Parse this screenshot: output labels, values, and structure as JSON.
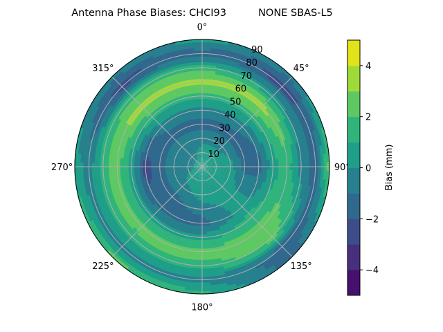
{
  "chart_data": {
    "type": "heatmap",
    "subtype": "polar-contour",
    "title": "Antenna Phase Biases: CHCI93          NONE SBAS-L5",
    "angular_tick_labels": [
      "0°",
      "45°",
      "90°",
      "135°",
      "180°",
      "225°",
      "270°",
      "315°"
    ],
    "radial_tick_labels": [
      "10",
      "20",
      "30",
      "40",
      "50",
      "60",
      "70",
      "80",
      "90"
    ],
    "radial_range": [
      0,
      90
    ],
    "angular_direction": "clockwise",
    "angular_zero": "top",
    "grid": true,
    "colorbar": {
      "label": "Bias (mm)",
      "levels": [
        -5,
        -4,
        -3,
        -2,
        -1,
        0,
        1,
        2,
        3,
        4,
        5
      ],
      "tick_values": [
        4,
        2,
        0,
        -2,
        -4
      ],
      "tick_labels": [
        "4",
        "2",
        "0",
        "−2",
        "−4"
      ],
      "colors": [
        "#45106e",
        "#472f7d",
        "#3e4c8a",
        "#31688e",
        "#27808e",
        "#1f9e89",
        "#30b47c",
        "#5ec962",
        "#a0da39",
        "#e2e21b"
      ],
      "colormap": "viridis",
      "placement": "right"
    },
    "field": {
      "azimuths": [
        0,
        45,
        90,
        135,
        180,
        225,
        270,
        315
      ],
      "radii": [
        0,
        10,
        20,
        30,
        40,
        50,
        60,
        70,
        80,
        90
      ],
      "values": [
        [
          0.5,
          0.5,
          0.5,
          0.5,
          0.5,
          0.5,
          0.5,
          0.5
        ],
        [
          0.5,
          0.5,
          0.5,
          0.5,
          0.5,
          0.5,
          -0.5,
          -0.5
        ],
        [
          -0.5,
          -0.5,
          0.5,
          0.5,
          0.5,
          -0.5,
          -0.5,
          -0.5
        ],
        [
          -1.5,
          -1.5,
          -1.5,
          0.5,
          -0.5,
          -1.5,
          -1.5,
          -1.5
        ],
        [
          -0.5,
          -0.5,
          -1.5,
          0.5,
          -1.5,
          -1.5,
          -2.5,
          -0.5
        ],
        [
          1.5,
          1.5,
          0.5,
          1.5,
          0.5,
          0.5,
          0.5,
          1.5
        ],
        [
          3.5,
          3.5,
          1.5,
          2.5,
          2.5,
          2.5,
          2.5,
          3.5
        ],
        [
          1.5,
          0.5,
          -0.5,
          2.5,
          1.5,
          1.5,
          1.5,
          1.5
        ],
        [
          -1.5,
          -2.5,
          -1.5,
          -1.5,
          -0.5,
          -0.5,
          -0.5,
          -2.5
        ],
        [
          0.5,
          -0.5,
          2.5,
          -1.5,
          1.5,
          2.5,
          0.5,
          -0.5
        ]
      ]
    }
  }
}
